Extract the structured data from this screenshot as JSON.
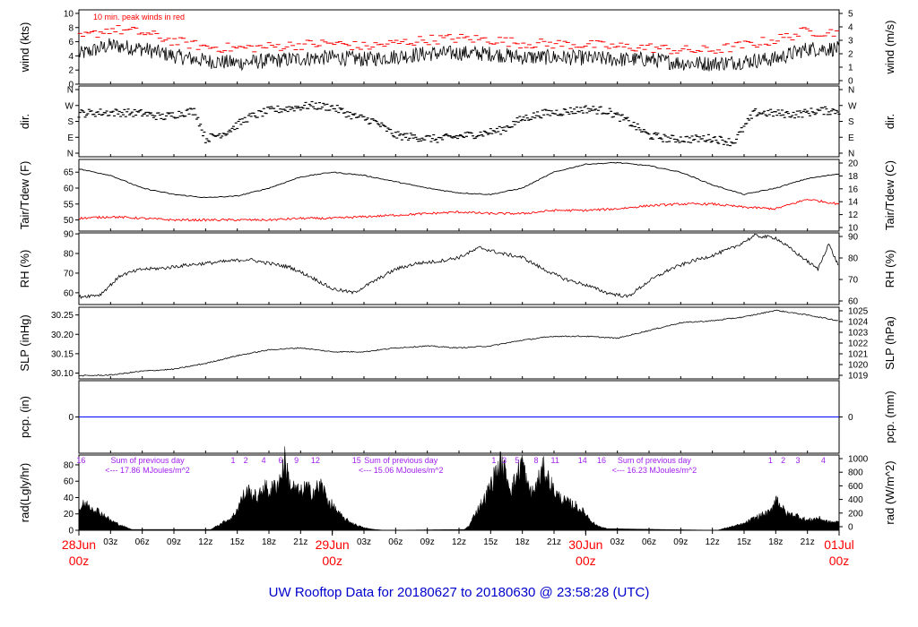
{
  "footer_title": "UW Rooftop Data for 20180627  to  20180630 @ 23:58:28  (UTC)",
  "colors": {
    "trace": "#000000",
    "peak": "#ff0000",
    "dew": "#ff0000",
    "pcp": "#0000ff",
    "annot": "#a020f0",
    "date": "#ff0000",
    "title": "#0000cc"
  },
  "time_axis": {
    "hour_labels": [
      "03z",
      "06z",
      "09z",
      "12z",
      "15z",
      "18z",
      "21z",
      "03z",
      "06z",
      "09z",
      "12z",
      "15z",
      "18z",
      "21z",
      "03z",
      "06z",
      "09z",
      "12z",
      "15z",
      "18z",
      "21z"
    ],
    "date_labels": [
      {
        "line1": "28Jun",
        "line2": "00z"
      },
      {
        "line1": "29Jun",
        "line2": "00z"
      },
      {
        "line1": "30Jun",
        "line2": "00z"
      },
      {
        "line1": "01Jul",
        "line2": "00z"
      }
    ]
  },
  "chart_data": [
    {
      "type": "line",
      "id": "wind",
      "ylabel": "wind (kts)",
      "ylabel_right": "wind (m/s)",
      "annotation": "10 min. peak winds in red",
      "ylim": [
        0,
        10.5
      ],
      "yticks": [
        0,
        2,
        4,
        6,
        8,
        10
      ],
      "right_ticks": [
        "0",
        "1",
        "2",
        "3",
        "4",
        "5"
      ],
      "x_hours": [
        0,
        3,
        6,
        9,
        12,
        15,
        18,
        21,
        24,
        27,
        30,
        33,
        36,
        39,
        42,
        45,
        48,
        51,
        54,
        57,
        60,
        63,
        66,
        69,
        72
      ],
      "series": [
        {
          "values": [
            4.2,
            5.5,
            5.0,
            4.0,
            3.3,
            3.0,
            3.3,
            3.6,
            3.8,
            3.5,
            3.9,
            4.3,
            4.4,
            4.3,
            3.8,
            3.8,
            3.7,
            3.5,
            3.5,
            3.0,
            2.9,
            3.2,
            3.6,
            5.0,
            5.0
          ]
        },
        {
          "values": [
            6.2,
            7.5,
            7.0,
            5.8,
            5.0,
            4.8,
            5.0,
            5.3,
            5.5,
            5.0,
            5.5,
            6.0,
            6.2,
            6.0,
            5.5,
            5.4,
            5.3,
            5.0,
            4.9,
            4.5,
            4.5,
            5.2,
            6.0,
            7.2,
            7.0
          ]
        }
      ]
    },
    {
      "type": "scatter",
      "id": "dir",
      "ylabel": "dir.",
      "ytick_labels": [
        "N",
        "E",
        "S",
        "W",
        "N"
      ],
      "x_hours": [
        0,
        2,
        4,
        6,
        8,
        10,
        11,
        12,
        14,
        16,
        18,
        20,
        22,
        24,
        26,
        28,
        30,
        32,
        34,
        36,
        38,
        40,
        42,
        44,
        46,
        48,
        50,
        52,
        54,
        56,
        58,
        60,
        62,
        64,
        66,
        68,
        70,
        72
      ],
      "values": [
        225,
        230,
        230,
        225,
        205,
        230,
        240,
        80,
        120,
        200,
        240,
        255,
        270,
        260,
        210,
        180,
        100,
        90,
        80,
        95,
        110,
        130,
        195,
        225,
        235,
        250,
        240,
        180,
        100,
        80,
        80,
        85,
        60,
        230,
        225,
        220,
        240,
        240
      ]
    },
    {
      "type": "line",
      "id": "temp",
      "ylabel": "Tair/Tdew (F)",
      "ylabel_right": "Tair/Tdew (C)",
      "ylim": [
        46.5,
        69
      ],
      "yticks": [
        50,
        55,
        60,
        65
      ],
      "right_ticks": [
        "10",
        "12",
        "14",
        "16",
        "18",
        "20"
      ],
      "x_hours": [
        0,
        3,
        6,
        9,
        12,
        15,
        18,
        21,
        24,
        27,
        30,
        33,
        36,
        39,
        42,
        45,
        48,
        51,
        54,
        57,
        60,
        63,
        66,
        69,
        72
      ],
      "series": [
        {
          "name": "Tair",
          "values": [
            66,
            64,
            60,
            58,
            57,
            57.5,
            60,
            63.5,
            65,
            64,
            62,
            60,
            58.5,
            58,
            60,
            65,
            67.5,
            68,
            67,
            65,
            61,
            58,
            60,
            63,
            64.5
          ]
        },
        {
          "name": "Tdew",
          "values": [
            50.5,
            51,
            50.5,
            50,
            50,
            50,
            50,
            50.5,
            50.5,
            51,
            51.5,
            52,
            52.5,
            52,
            52,
            53,
            53,
            53.5,
            54.5,
            55,
            55,
            54,
            53.5,
            56.5,
            55
          ]
        }
      ]
    },
    {
      "type": "line",
      "id": "rh",
      "ylabel": "RH (%)",
      "ylabel_right": "RH (%)",
      "ylim": [
        54,
        90.5
      ],
      "yticks": [
        60,
        70,
        80,
        90
      ],
      "right_ticks": [
        "60",
        "70",
        "80",
        "90"
      ],
      "x_hours": [
        0,
        2,
        4,
        6,
        8,
        10,
        12,
        14,
        16,
        18,
        20,
        22,
        24,
        26,
        28,
        30,
        32,
        34,
        36,
        38,
        40,
        42,
        44,
        46,
        48,
        50,
        52,
        54,
        56,
        58,
        60,
        62,
        64,
        66,
        68,
        70,
        71,
        72
      ],
      "values": [
        58,
        59,
        69,
        72,
        72.5,
        74,
        75,
        76,
        77,
        75,
        73,
        68,
        62,
        60,
        66,
        72,
        75,
        76,
        78,
        83,
        80,
        78,
        72,
        67,
        64,
        60,
        58,
        66,
        72,
        76,
        79,
        83,
        89,
        88,
        80,
        72,
        85,
        73
      ]
    },
    {
      "type": "line",
      "id": "slp",
      "ylabel": "SLP (inHg)",
      "ylabel_right": "SLP (hPa)",
      "ylim": [
        30.085,
        30.27
      ],
      "yticks": [
        30.1,
        30.15,
        30.2,
        30.25
      ],
      "ytick_labels": [
        "30.10",
        "30.15",
        "30.20",
        "30.25"
      ],
      "right_ticks": [
        "1019",
        "1020",
        "1021",
        "1022",
        "1023",
        "1024",
        "1025"
      ],
      "x_hours": [
        0,
        3,
        6,
        9,
        12,
        15,
        18,
        21,
        24,
        27,
        30,
        33,
        36,
        39,
        42,
        45,
        48,
        51,
        54,
        57,
        60,
        63,
        66,
        69,
        72
      ],
      "values": [
        30.093,
        30.095,
        30.105,
        30.11,
        30.125,
        30.145,
        30.16,
        30.165,
        30.155,
        30.155,
        30.165,
        30.17,
        30.165,
        30.17,
        30.185,
        30.195,
        30.195,
        30.19,
        30.21,
        30.23,
        30.235,
        30.245,
        30.262,
        30.25,
        30.235
      ]
    },
    {
      "type": "line",
      "id": "pcp",
      "ylabel": "pcp. (in)",
      "ylabel_right": "pcp. (mm)",
      "ylim": [
        -1,
        1
      ],
      "yticks": [
        0
      ],
      "right_ticks": [
        "0"
      ],
      "x_hours": [
        0,
        72
      ],
      "values": [
        0,
        0
      ]
    },
    {
      "type": "area",
      "id": "rad",
      "ylabel": "rad(Lgly/hr)",
      "ylabel_right": "rad (W/m^2)",
      "ylim": [
        0,
        92
      ],
      "yticks": [
        0,
        20,
        40,
        60,
        80
      ],
      "right_ticks": [
        "0",
        "200",
        "400",
        "600",
        "800",
        "1000"
      ],
      "x_hours": [
        0,
        0.5,
        1,
        2,
        3,
        4,
        5,
        12.5,
        13,
        14,
        14.5,
        15,
        15.5,
        16,
        17,
        17.5,
        18,
        19,
        19.5,
        20,
        21,
        21.5,
        22,
        23,
        23.5,
        24,
        25,
        26,
        27,
        28,
        29,
        36.5,
        37,
        37.5,
        38,
        38.5,
        39,
        39.5,
        40,
        41,
        42,
        42.5,
        43,
        44,
        45,
        45.5,
        46,
        47,
        48,
        48.5,
        49,
        50,
        60.5,
        61,
        62,
        63,
        64,
        65,
        65.5,
        66,
        67,
        68,
        69,
        70,
        71,
        72
      ],
      "values": [
        25,
        32,
        30,
        22,
        12,
        6,
        1,
        1,
        5,
        12,
        15,
        26,
        40,
        48,
        38,
        55,
        46,
        60,
        85,
        55,
        45,
        53,
        46,
        55,
        38,
        30,
        15,
        8,
        3,
        1,
        0,
        1,
        6,
        20,
        30,
        40,
        55,
        70,
        82,
        50,
        85,
        52,
        45,
        75,
        48,
        40,
        35,
        30,
        20,
        12,
        6,
        2,
        0,
        2,
        5,
        8,
        15,
        20,
        22,
        40,
        20,
        18,
        12,
        15,
        10,
        10
      ],
      "annotations": {
        "sums": [
          {
            "title": "Sum of previous day",
            "value": "<--- 17.86 MJoules/m^2"
          },
          {
            "title": "Sum of previous day",
            "value": "<--- 15.06 MJoules/m^2"
          },
          {
            "title": "Sum of previous day",
            "value": "<--- 16.23 MJoules/m^2"
          }
        ],
        "markers": [
          {
            "label": "16",
            "hour": 0.2
          },
          {
            "label": "1",
            "hour": 14.6
          },
          {
            "label": "2",
            "hour": 15.8
          },
          {
            "label": "4",
            "hour": 17.5
          },
          {
            "label": "6",
            "hour": 19.1
          },
          {
            "label": "9",
            "hour": 20.6
          },
          {
            "label": "12",
            "hour": 22.4
          },
          {
            "label": "15",
            "hour": 26.3
          },
          {
            "label": "1",
            "hour": 39.3
          },
          {
            "label": "3",
            "hour": 40.3
          },
          {
            "label": "5",
            "hour": 41.5
          },
          {
            "label": "8",
            "hour": 43.3
          },
          {
            "label": "11",
            "hour": 45.1
          },
          {
            "label": "14",
            "hour": 47.7
          },
          {
            "label": "16",
            "hour": 49.5
          },
          {
            "label": "1",
            "hour": 65.5
          },
          {
            "label": "2",
            "hour": 66.7
          },
          {
            "label": "3",
            "hour": 68.1
          },
          {
            "label": "4",
            "hour": 70.5
          }
        ]
      }
    }
  ]
}
